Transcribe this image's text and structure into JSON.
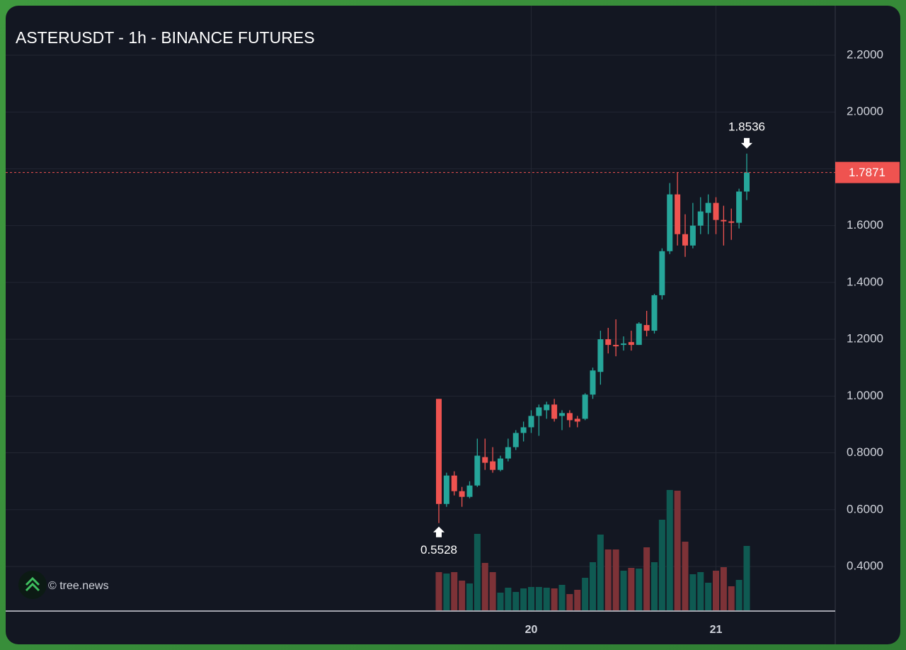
{
  "chart_data": {
    "type": "candlestick",
    "title": "ASTERUSDT - 1h - BINANCE FUTURES",
    "watermark": "© tree.news",
    "categories": [
      null,
      null,
      null,
      null,
      null,
      null,
      null,
      null,
      null,
      null,
      null,
      null,
      "20",
      null,
      null,
      null,
      null,
      null,
      null,
      null,
      null,
      null,
      null,
      null,
      null,
      null,
      null,
      null,
      null,
      null,
      null,
      null,
      null,
      null,
      null,
      null,
      "21",
      null,
      null,
      null,
      null
    ],
    "open": [
      0.99,
      0.62,
      0.72,
      0.665,
      0.645,
      0.685,
      0.785,
      0.77,
      0.74,
      0.78,
      0.82,
      0.87,
      0.89,
      0.93,
      0.95,
      0.97,
      0.93,
      0.94,
      0.92,
      0.92,
      1.005,
      1.085,
      1.2,
      1.18,
      1.18,
      1.19,
      1.18,
      1.25,
      1.23,
      1.355,
      1.51,
      1.71,
      1.57,
      1.53,
      1.6,
      1.645,
      1.68,
      1.62,
      1.615,
      1.61,
      1.72
    ],
    "high": [
      0.99,
      0.73,
      0.735,
      0.68,
      0.7,
      0.85,
      0.85,
      0.82,
      0.79,
      0.85,
      0.88,
      0.91,
      0.95,
      0.97,
      0.98,
      0.99,
      0.95,
      0.95,
      0.93,
      1.01,
      1.1,
      1.23,
      1.24,
      1.27,
      1.21,
      1.23,
      1.26,
      1.3,
      1.36,
      1.52,
      1.75,
      1.787,
      1.64,
      1.68,
      1.7,
      1.71,
      1.7,
      1.67,
      1.66,
      1.73,
      1.8536
    ],
    "low": [
      0.5528,
      0.61,
      0.65,
      0.61,
      0.64,
      0.68,
      0.74,
      0.73,
      0.735,
      0.77,
      0.81,
      0.84,
      0.87,
      0.86,
      0.92,
      0.91,
      0.88,
      0.89,
      0.89,
      0.915,
      0.99,
      1.04,
      1.15,
      1.14,
      1.16,
      1.16,
      1.18,
      1.21,
      1.22,
      1.34,
      1.5,
      1.53,
      1.49,
      1.52,
      1.57,
      1.57,
      1.57,
      1.53,
      1.55,
      1.59,
      1.69
    ],
    "close": [
      0.62,
      0.72,
      0.665,
      0.645,
      0.685,
      0.79,
      0.765,
      0.74,
      0.78,
      0.82,
      0.87,
      0.89,
      0.93,
      0.96,
      0.97,
      0.92,
      0.94,
      0.915,
      0.91,
      1.005,
      1.09,
      1.2,
      1.18,
      1.175,
      1.185,
      1.18,
      1.255,
      1.23,
      1.355,
      1.51,
      1.71,
      1.57,
      1.53,
      1.6,
      1.65,
      1.68,
      1.62,
      1.615,
      1.61,
      1.72,
      1.7871
    ],
    "volume": [
      54,
      52,
      54,
      42,
      38,
      108,
      67,
      54,
      25,
      32,
      26,
      31,
      33,
      33,
      32,
      31,
      36,
      23,
      29,
      46,
      68,
      107,
      86,
      86,
      56,
      60,
      59,
      89,
      68,
      128,
      170,
      169,
      97,
      51,
      54,
      39,
      56,
      61,
      34,
      43,
      91
    ],
    "up_color": "#26a69a",
    "down_color": "#ef5350",
    "volume_up_color": "#0f5a52",
    "volume_down_color": "#7d3237",
    "ylim": [
      0.2454,
      2.3745
    ],
    "yticks": [
      {
        "value": 0.4,
        "label": "0.4000"
      },
      {
        "value": 0.6,
        "label": "0.6000"
      },
      {
        "value": 0.8,
        "label": "0.8000"
      },
      {
        "value": 1.0,
        "label": "1.0000"
      },
      {
        "value": 1.2,
        "label": "1.2000"
      },
      {
        "value": 1.4,
        "label": "1.4000"
      },
      {
        "value": 1.6,
        "label": "1.6000"
      },
      {
        "value": 1.8,
        "label": "1.8000"
      },
      {
        "value": 2.0,
        "label": "2.0000"
      },
      {
        "value": 2.2,
        "label": "2.2000"
      }
    ],
    "grid": true,
    "last_price": {
      "value": 1.7871,
      "label": "1.7871"
    },
    "high_marker": {
      "value": 1.8536,
      "label": "1.8536"
    },
    "low_marker": {
      "value": 0.5528,
      "label": "0.5528"
    }
  }
}
